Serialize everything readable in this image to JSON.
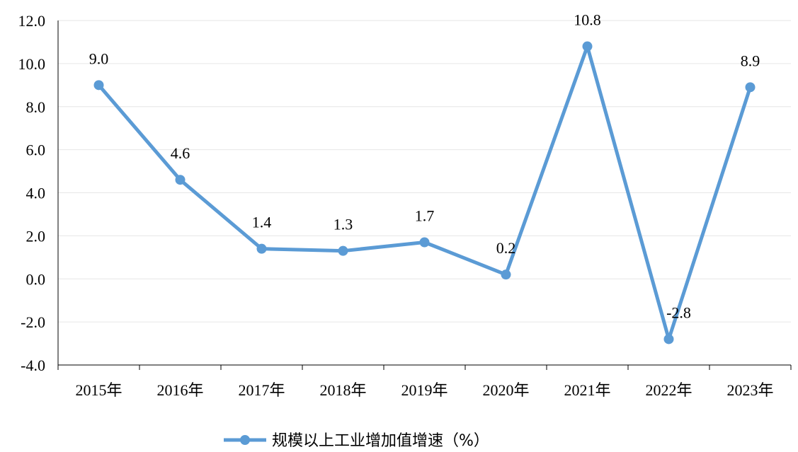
{
  "chart_data": {
    "type": "line",
    "categories": [
      "2015年",
      "2016年",
      "2017年",
      "2018年",
      "2019年",
      "2020年",
      "2021年",
      "2022年",
      "2023年"
    ],
    "series": [
      {
        "name": "规模以上工业增加值增速（%）",
        "values": [
          9.0,
          4.6,
          1.4,
          1.3,
          1.7,
          0.2,
          10.8,
          -2.8,
          8.9
        ],
        "labels": [
          "9.0",
          "4.6",
          "1.4",
          "1.3",
          "1.7",
          "0.2",
          "10.8",
          "-2.8",
          "8.9"
        ],
        "color": "#5B9BD5"
      }
    ],
    "ylim": [
      -4.0,
      12.0
    ],
    "yticks": [
      "12.0",
      "10.0",
      "8.0",
      "6.0",
      "4.0",
      "2.0",
      "0.0",
      "-2.0",
      "-4.0"
    ],
    "ytick_values": [
      12,
      10,
      8,
      6,
      4,
      2,
      0,
      -2,
      -4
    ],
    "grid": true,
    "legend_position": "bottom",
    "title": "",
    "xlabel": "",
    "ylabel": ""
  },
  "colors": {
    "line": "#5B9BD5",
    "grid": "#E6E6E6",
    "axis": "#000000"
  }
}
